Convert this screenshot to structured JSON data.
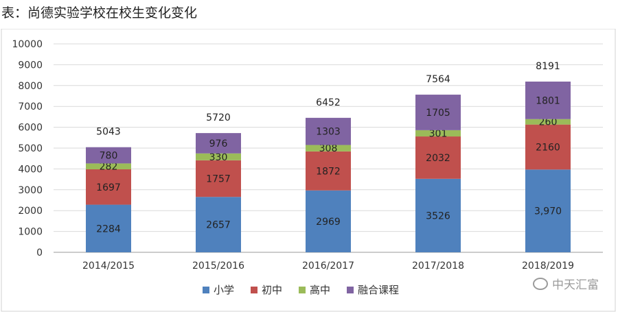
{
  "title": "表：尚德实验学校在校生变化变化",
  "watermark": "中天汇富",
  "chart_data": {
    "type": "bar",
    "stacked": true,
    "categories": [
      "2014/2015",
      "2015/2016",
      "2016/2017",
      "2017/2018",
      "2018/2019"
    ],
    "series": [
      {
        "name": "小学",
        "color": "#4f81bd",
        "values": [
          2284,
          2657,
          2969,
          3526,
          3970
        ],
        "labels": [
          "2284",
          "2657",
          "2969",
          "3526",
          "3,970"
        ]
      },
      {
        "name": "初中",
        "color": "#c0504d",
        "values": [
          1697,
          1757,
          1872,
          2032,
          2160
        ],
        "labels": [
          "1697",
          "1757",
          "1872",
          "2032",
          "2160"
        ]
      },
      {
        "name": "高中",
        "color": "#9bbb59",
        "values": [
          282,
          330,
          308,
          301,
          260
        ],
        "labels": [
          "282",
          "330",
          "308",
          "301",
          "260"
        ]
      },
      {
        "name": "融合课程",
        "color": "#8064a2",
        "values": [
          780,
          976,
          1303,
          1705,
          1801
        ],
        "labels": [
          "780",
          "976",
          "1303",
          "1705",
          "1801"
        ]
      }
    ],
    "totals": [
      "5043",
      "5720",
      "6452",
      "7564",
      "8191"
    ],
    "ylim": [
      0,
      10000
    ],
    "yticks": [
      0,
      1000,
      2000,
      3000,
      4000,
      5000,
      6000,
      7000,
      8000,
      9000,
      10000
    ],
    "grid": true,
    "legend_position": "bottom"
  }
}
